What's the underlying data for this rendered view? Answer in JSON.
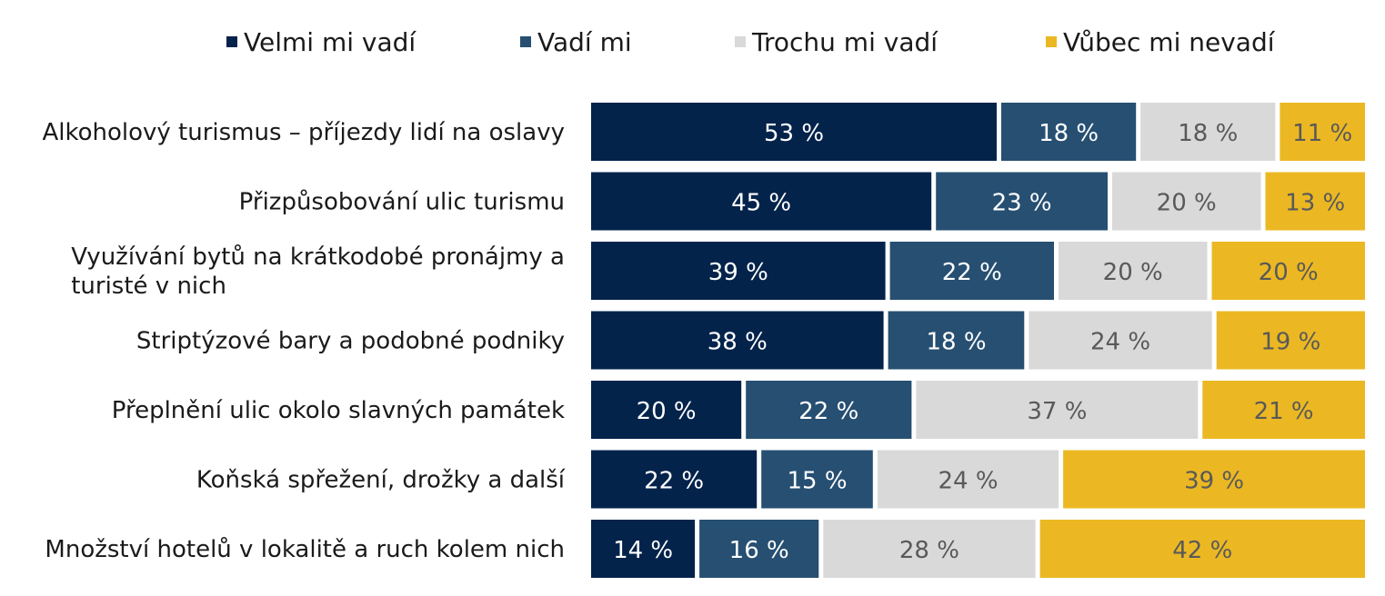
{
  "chart_data": {
    "type": "bar",
    "orientation": "horizontal",
    "stacked": "100%",
    "title": "",
    "xlabel": "",
    "ylabel": "",
    "xlim": [
      0,
      100
    ],
    "unit": "%",
    "grid": false,
    "legend_position": "top",
    "categories": [
      "Alkoholový turismus – příjezdy lidí na oslavy",
      "Přizpůsobování ulic turismu",
      "Využívání bytů na krátkodobé pronájmy a turisté v nich",
      "Striptýzové bary a podobné podniky",
      "Přeplnění ulic okolo slavných památek",
      "Koňská spřežení, drožky a další",
      "Množství hotelů v lokalitě a ruch kolem nich"
    ],
    "series": [
      {
        "name": "Velmi mi vadí",
        "color": "#03234B",
        "label_color": "#FFFFFF",
        "values": [
          53,
          45,
          39,
          38,
          20,
          22,
          14
        ]
      },
      {
        "name": "Vadí mi",
        "color": "#264F72",
        "label_color": "#FFFFFF",
        "values": [
          18,
          23,
          22,
          18,
          22,
          15,
          16
        ]
      },
      {
        "name": "Trochu mi vadí",
        "color": "#D9D9D9",
        "label_color": "#595959",
        "values": [
          18,
          20,
          20,
          24,
          37,
          24,
          28
        ]
      },
      {
        "name": "Vůbec mi nevadí",
        "color": "#EBB823",
        "label_color": "#595959",
        "values": [
          11,
          13,
          20,
          19,
          21,
          39,
          42
        ]
      }
    ]
  }
}
